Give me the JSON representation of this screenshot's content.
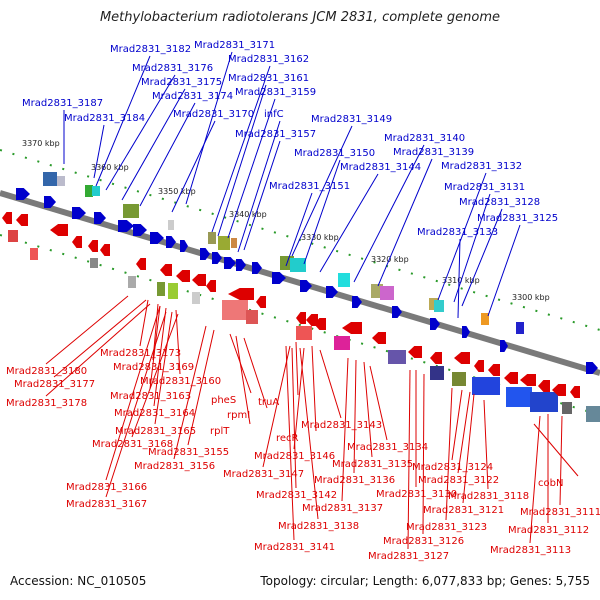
{
  "title": "Methylobacterium radiotolerans JCM 2831, complete genome",
  "footer": {
    "accession": "Accession: NC_010505",
    "summary": "Topology: circular; Length: 6,077,833 bp; Genes: 5,755"
  },
  "colors": {
    "forward": "#0000cc",
    "reverse": "#dd0000",
    "backbone": "#888888",
    "tick": "#2a9a2a"
  },
  "scale_ticks": [
    "3370 kbp",
    "3360 kbp",
    "3350 kbp",
    "3340 kbp",
    "3330 kbp",
    "3320 kbp",
    "3310 kbp",
    "3300 kbp"
  ],
  "forward_labels": [
    "Mrad2831_3171",
    "Mrad2831_3182",
    "Mrad2831_3162",
    "Mrad2831_3176",
    "Mrad2831_3161",
    "Mrad2831_3175",
    "Mrad2831_3159",
    "Mrad2831_3174",
    "Mrad2831_3187",
    "Mrad2831_3170",
    "infC",
    "Mrad2831_3184",
    "Mrad2831_3149",
    "Mrad2831_3157",
    "Mrad2831_3140",
    "Mrad2831_3150",
    "Mrad2831_3139",
    "Mrad2831_3144",
    "Mrad2831_3132",
    "Mrad2831_3151",
    "Mrad2831_3131",
    "Mrad2831_3128",
    "Mrad2831_3125",
    "Mrad2831_3133"
  ],
  "reverse_labels": [
    "Mrad2831_3173",
    "Mrad2831_3169",
    "Mrad2831_3180",
    "Mrad2831_3177",
    "Mrad2831_3160",
    "Mrad2831_3178",
    "Mrad2831_3163",
    "pheS",
    "truA",
    "Mrad2831_3164",
    "rpmI",
    "Mrad2831_3165",
    "rplT",
    "Mrad2831_3143",
    "recR",
    "Mrad2831_3168",
    "Mrad2831_3134",
    "Mrad2831_3155",
    "Mrad2831_3146",
    "Mrad2831_3156",
    "Mrad2831_3135",
    "Mrad2831_3124",
    "Mrad2831_3147",
    "Mrad2831_3136",
    "Mrad2831_3122",
    "Mrad2831_3166",
    "Mrad2831_3142",
    "Mrad2831_3130",
    "Mrad2831_3118",
    "cobN",
    "Mrad2831_3167",
    "Mrad2831_3137",
    "Mrad2831_3121",
    "Mrad2831_3111",
    "Mrad2831_3138",
    "Mrad2831_3123",
    "Mrad2831_3112",
    "Mrad2831_3126",
    "Mrad2831_3141",
    "Mrad2831_3113",
    "Mrad2831_3127"
  ]
}
